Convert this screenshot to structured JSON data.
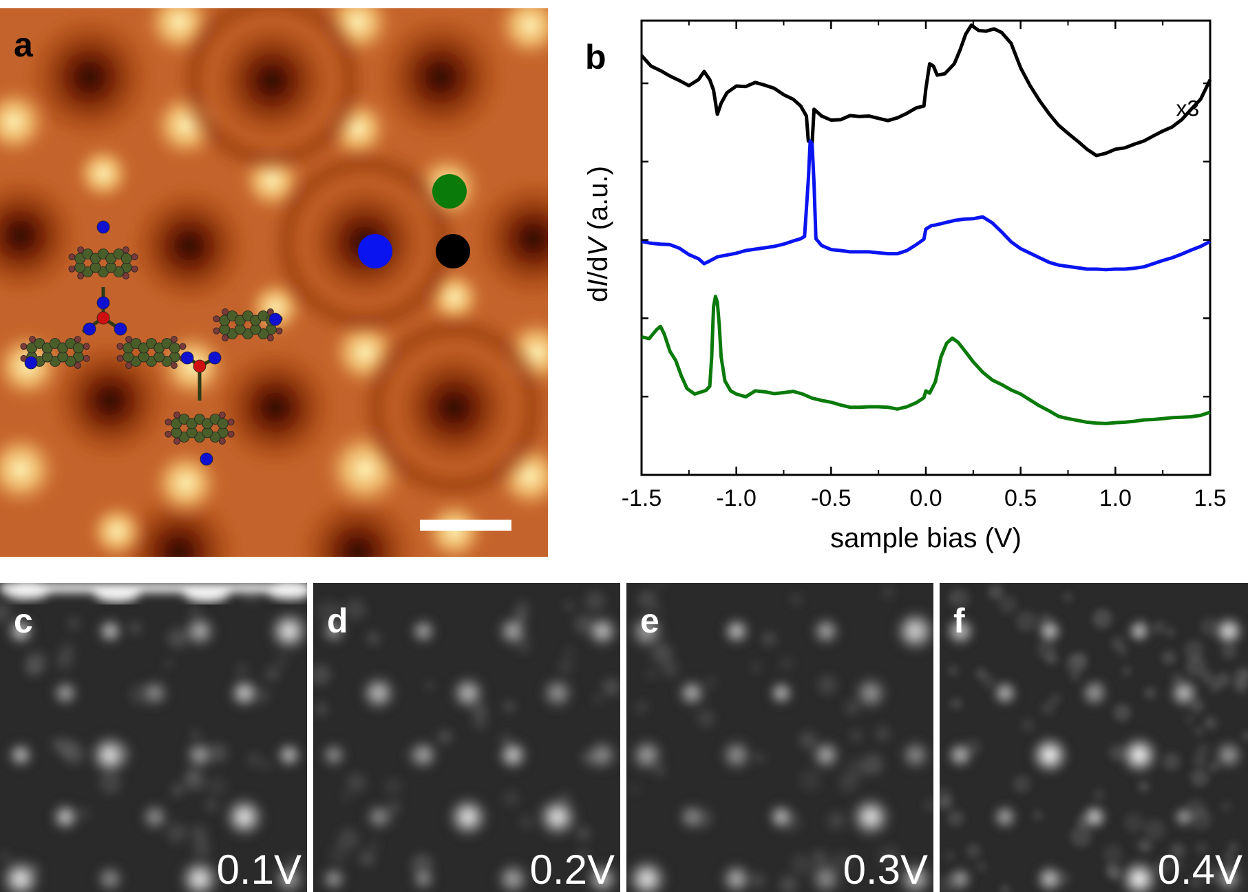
{
  "panel_labels": {
    "a": "a",
    "b": "b",
    "c": "c",
    "d": "d",
    "e": "e",
    "f": "f"
  },
  "map_voltages": {
    "c": "0.1V",
    "d": "0.2V",
    "e": "0.3V",
    "f": "0.4V"
  },
  "colors": {
    "topography_base": "#c0602a",
    "topography_bright": "#fff0a8",
    "topography_dark": "#3a0800",
    "marker_green": "#0a7a0a",
    "marker_blue": "#0a14f0",
    "marker_black": "#000000",
    "atom_carbon": "#4a5e2a",
    "atom_nitrogen": "#1010d0",
    "atom_boron": "#d01010",
    "atom_hydrogen": "#7a3a3a"
  },
  "chart_data": {
    "type": "line",
    "xlabel": "sample bias (V)",
    "ylabel_parts": [
      "d",
      "I",
      "/d",
      "V",
      " (a.u.)"
    ],
    "xlim": [
      -1.5,
      1.5
    ],
    "x_ticks": [
      "-1.5",
      "-1.0",
      "-0.5",
      "0.0",
      "0.5",
      "1.0",
      "1.5"
    ],
    "annotation": "x3",
    "series": [
      {
        "color": "#000000",
        "points": [
          [
            -1.5,
            0.923
          ],
          [
            -1.45,
            0.9
          ],
          [
            -1.4,
            0.89
          ],
          [
            -1.35,
            0.878
          ],
          [
            -1.3,
            0.868
          ],
          [
            -1.25,
            0.857
          ],
          [
            -1.2,
            0.87
          ],
          [
            -1.17,
            0.888
          ],
          [
            -1.14,
            0.87
          ],
          [
            -1.12,
            0.847
          ],
          [
            -1.1,
            0.794
          ],
          [
            -1.08,
            0.818
          ],
          [
            -1.05,
            0.841
          ],
          [
            -1.0,
            0.856
          ],
          [
            -0.95,
            0.855
          ],
          [
            -0.9,
            0.864
          ],
          [
            -0.85,
            0.858
          ],
          [
            -0.8,
            0.851
          ],
          [
            -0.75,
            0.837
          ],
          [
            -0.7,
            0.827
          ],
          [
            -0.66,
            0.812
          ],
          [
            -0.63,
            0.79
          ],
          [
            -0.62,
            0.735
          ],
          [
            -0.6,
            0.73
          ],
          [
            -0.59,
            0.805
          ],
          [
            -0.55,
            0.79
          ],
          [
            -0.5,
            0.781
          ],
          [
            -0.45,
            0.782
          ],
          [
            -0.4,
            0.791
          ],
          [
            -0.35,
            0.789
          ],
          [
            -0.3,
            0.79
          ],
          [
            -0.25,
            0.785
          ],
          [
            -0.2,
            0.78
          ],
          [
            -0.15,
            0.786
          ],
          [
            -0.1,
            0.796
          ],
          [
            -0.05,
            0.808
          ],
          [
            -0.01,
            0.812
          ],
          [
            0.0,
            0.85
          ],
          [
            0.02,
            0.905
          ],
          [
            0.04,
            0.9
          ],
          [
            0.06,
            0.88
          ],
          [
            0.1,
            0.883
          ],
          [
            0.15,
            0.905
          ],
          [
            0.18,
            0.935
          ],
          [
            0.21,
            0.97
          ],
          [
            0.24,
            0.99
          ],
          [
            0.28,
            0.978
          ],
          [
            0.32,
            0.977
          ],
          [
            0.36,
            0.982
          ],
          [
            0.4,
            0.974
          ],
          [
            0.45,
            0.95
          ],
          [
            0.5,
            0.896
          ],
          [
            0.55,
            0.857
          ],
          [
            0.6,
            0.824
          ],
          [
            0.65,
            0.795
          ],
          [
            0.7,
            0.77
          ],
          [
            0.75,
            0.752
          ],
          [
            0.8,
            0.735
          ],
          [
            0.85,
            0.717
          ],
          [
            0.9,
            0.703
          ],
          [
            0.95,
            0.708
          ],
          [
            1.0,
            0.717
          ],
          [
            1.05,
            0.72
          ],
          [
            1.1,
            0.728
          ],
          [
            1.15,
            0.735
          ],
          [
            1.2,
            0.746
          ],
          [
            1.25,
            0.757
          ],
          [
            1.3,
            0.766
          ],
          [
            1.35,
            0.782
          ],
          [
            1.4,
            0.805
          ],
          [
            1.45,
            0.827
          ],
          [
            1.5,
            0.87
          ]
        ]
      },
      {
        "color": "#0a14f0",
        "points": [
          [
            -1.5,
            0.514
          ],
          [
            -1.45,
            0.51
          ],
          [
            -1.4,
            0.508
          ],
          [
            -1.35,
            0.507
          ],
          [
            -1.3,
            0.499
          ],
          [
            -1.25,
            0.485
          ],
          [
            -1.2,
            0.476
          ],
          [
            -1.17,
            0.465
          ],
          [
            -1.14,
            0.471
          ],
          [
            -1.1,
            0.48
          ],
          [
            -1.05,
            0.484
          ],
          [
            -1.0,
            0.488
          ],
          [
            -0.95,
            0.494
          ],
          [
            -0.9,
            0.497
          ],
          [
            -0.85,
            0.5
          ],
          [
            -0.8,
            0.503
          ],
          [
            -0.75,
            0.508
          ],
          [
            -0.7,
            0.515
          ],
          [
            -0.66,
            0.52
          ],
          [
            -0.64,
            0.525
          ],
          [
            -0.62,
            0.65
          ],
          [
            -0.61,
            0.735
          ],
          [
            -0.6,
            0.728
          ],
          [
            -0.59,
            0.64
          ],
          [
            -0.58,
            0.52
          ],
          [
            -0.55,
            0.505
          ],
          [
            -0.5,
            0.496
          ],
          [
            -0.45,
            0.494
          ],
          [
            -0.4,
            0.491
          ],
          [
            -0.35,
            0.491
          ],
          [
            -0.3,
            0.491
          ],
          [
            -0.25,
            0.489
          ],
          [
            -0.2,
            0.487
          ],
          [
            -0.15,
            0.487
          ],
          [
            -0.1,
            0.494
          ],
          [
            -0.05,
            0.507
          ],
          [
            -0.01,
            0.519
          ],
          [
            0.0,
            0.541
          ],
          [
            0.03,
            0.549
          ],
          [
            0.05,
            0.55
          ],
          [
            0.1,
            0.555
          ],
          [
            0.15,
            0.56
          ],
          [
            0.2,
            0.563
          ],
          [
            0.25,
            0.564
          ],
          [
            0.3,
            0.568
          ],
          [
            0.35,
            0.555
          ],
          [
            0.4,
            0.535
          ],
          [
            0.45,
            0.513
          ],
          [
            0.5,
            0.498
          ],
          [
            0.55,
            0.488
          ],
          [
            0.6,
            0.478
          ],
          [
            0.65,
            0.468
          ],
          [
            0.7,
            0.462
          ],
          [
            0.75,
            0.459
          ],
          [
            0.8,
            0.456
          ],
          [
            0.85,
            0.453
          ],
          [
            0.9,
            0.453
          ],
          [
            0.95,
            0.452
          ],
          [
            1.0,
            0.453
          ],
          [
            1.05,
            0.453
          ],
          [
            1.1,
            0.455
          ],
          [
            1.15,
            0.458
          ],
          [
            1.2,
            0.465
          ],
          [
            1.25,
            0.472
          ],
          [
            1.3,
            0.478
          ],
          [
            1.35,
            0.486
          ],
          [
            1.4,
            0.495
          ],
          [
            1.45,
            0.503
          ],
          [
            1.5,
            0.514
          ]
        ]
      },
      {
        "color": "#0a7a0a",
        "points": [
          [
            -1.5,
            0.304
          ],
          [
            -1.46,
            0.3
          ],
          [
            -1.44,
            0.31
          ],
          [
            -1.42,
            0.32
          ],
          [
            -1.4,
            0.327
          ],
          [
            -1.38,
            0.31
          ],
          [
            -1.35,
            0.272
          ],
          [
            -1.32,
            0.252
          ],
          [
            -1.29,
            0.218
          ],
          [
            -1.26,
            0.19
          ],
          [
            -1.22,
            0.178
          ],
          [
            -1.19,
            0.182
          ],
          [
            -1.16,
            0.186
          ],
          [
            -1.14,
            0.195
          ],
          [
            -1.13,
            0.26
          ],
          [
            -1.12,
            0.37
          ],
          [
            -1.11,
            0.393
          ],
          [
            -1.1,
            0.38
          ],
          [
            -1.09,
            0.33
          ],
          [
            -1.08,
            0.26
          ],
          [
            -1.06,
            0.207
          ],
          [
            -1.03,
            0.185
          ],
          [
            -1.0,
            0.178
          ],
          [
            -0.95,
            0.172
          ],
          [
            -0.9,
            0.185
          ],
          [
            -0.85,
            0.183
          ],
          [
            -0.8,
            0.179
          ],
          [
            -0.75,
            0.181
          ],
          [
            -0.7,
            0.184
          ],
          [
            -0.65,
            0.178
          ],
          [
            -0.6,
            0.169
          ],
          [
            -0.55,
            0.164
          ],
          [
            -0.5,
            0.16
          ],
          [
            -0.45,
            0.154
          ],
          [
            -0.4,
            0.149
          ],
          [
            -0.35,
            0.149
          ],
          [
            -0.3,
            0.15
          ],
          [
            -0.25,
            0.15
          ],
          [
            -0.2,
            0.149
          ],
          [
            -0.15,
            0.145
          ],
          [
            -0.1,
            0.15
          ],
          [
            -0.05,
            0.159
          ],
          [
            -0.01,
            0.17
          ],
          [
            0.0,
            0.185
          ],
          [
            0.02,
            0.18
          ],
          [
            0.05,
            0.205
          ],
          [
            0.08,
            0.26
          ],
          [
            0.11,
            0.29
          ],
          [
            0.14,
            0.301
          ],
          [
            0.17,
            0.292
          ],
          [
            0.2,
            0.276
          ],
          [
            0.25,
            0.249
          ],
          [
            0.3,
            0.226
          ],
          [
            0.35,
            0.209
          ],
          [
            0.4,
            0.199
          ],
          [
            0.45,
            0.187
          ],
          [
            0.5,
            0.178
          ],
          [
            0.55,
            0.165
          ],
          [
            0.6,
            0.152
          ],
          [
            0.65,
            0.141
          ],
          [
            0.7,
            0.129
          ],
          [
            0.75,
            0.124
          ],
          [
            0.8,
            0.12
          ],
          [
            0.85,
            0.116
          ],
          [
            0.9,
            0.114
          ],
          [
            0.95,
            0.113
          ],
          [
            1.0,
            0.115
          ],
          [
            1.05,
            0.116
          ],
          [
            1.1,
            0.118
          ],
          [
            1.15,
            0.121
          ],
          [
            1.2,
            0.122
          ],
          [
            1.25,
            0.124
          ],
          [
            1.3,
            0.126
          ],
          [
            1.35,
            0.127
          ],
          [
            1.4,
            0.128
          ],
          [
            1.45,
            0.131
          ],
          [
            1.5,
            0.138
          ]
        ]
      }
    ],
    "grid": false,
    "legend": "none"
  }
}
